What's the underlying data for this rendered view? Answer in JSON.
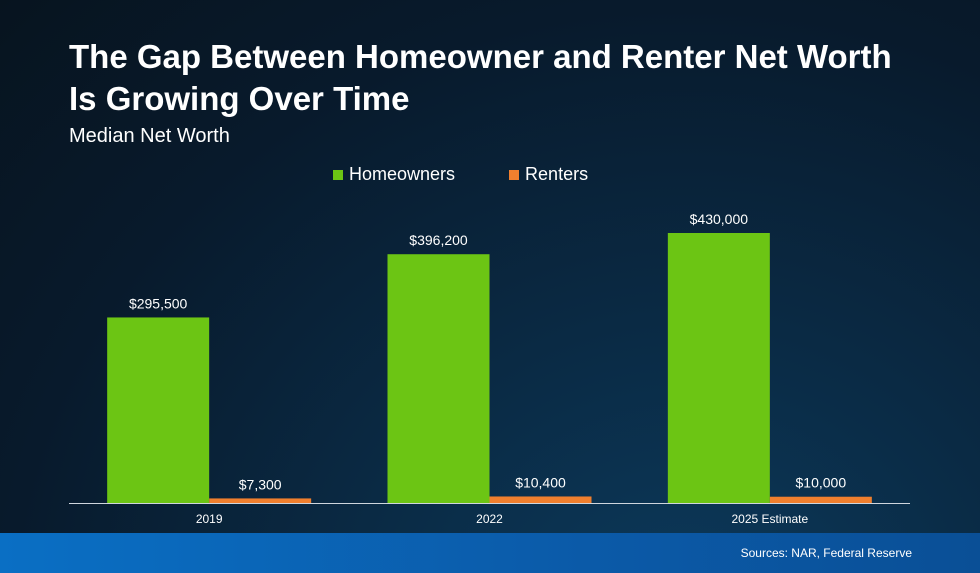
{
  "header": {
    "title": "The Gap Between Homeowner and Renter Net Worth Is Growing Over Time",
    "subtitle": "Median Net Worth"
  },
  "footer": {
    "source": "Sources: NAR, Federal Reserve"
  },
  "colors": {
    "homeowners": "#6cc514",
    "renters": "#f07f2e",
    "axis": "#cfd6de"
  },
  "chart_data": {
    "type": "bar",
    "title": "The Gap Between Homeowner and Renter Net Worth Is Growing Over Time",
    "subtitle": "Median Net Worth",
    "categories": [
      "2019",
      "2022",
      "2025 Estimate"
    ],
    "series": [
      {
        "name": "Homeowners",
        "values": [
          295500,
          396200,
          430000
        ],
        "labels": [
          "$295,500",
          "$396,200",
          "$430,000"
        ]
      },
      {
        "name": "Renters",
        "values": [
          7300,
          10400,
          10000
        ],
        "labels": [
          "$7,300",
          "$10,400",
          "$10,000"
        ]
      }
    ],
    "ylim": [
      0,
      430000
    ],
    "grid": false,
    "legend": "top-center"
  }
}
